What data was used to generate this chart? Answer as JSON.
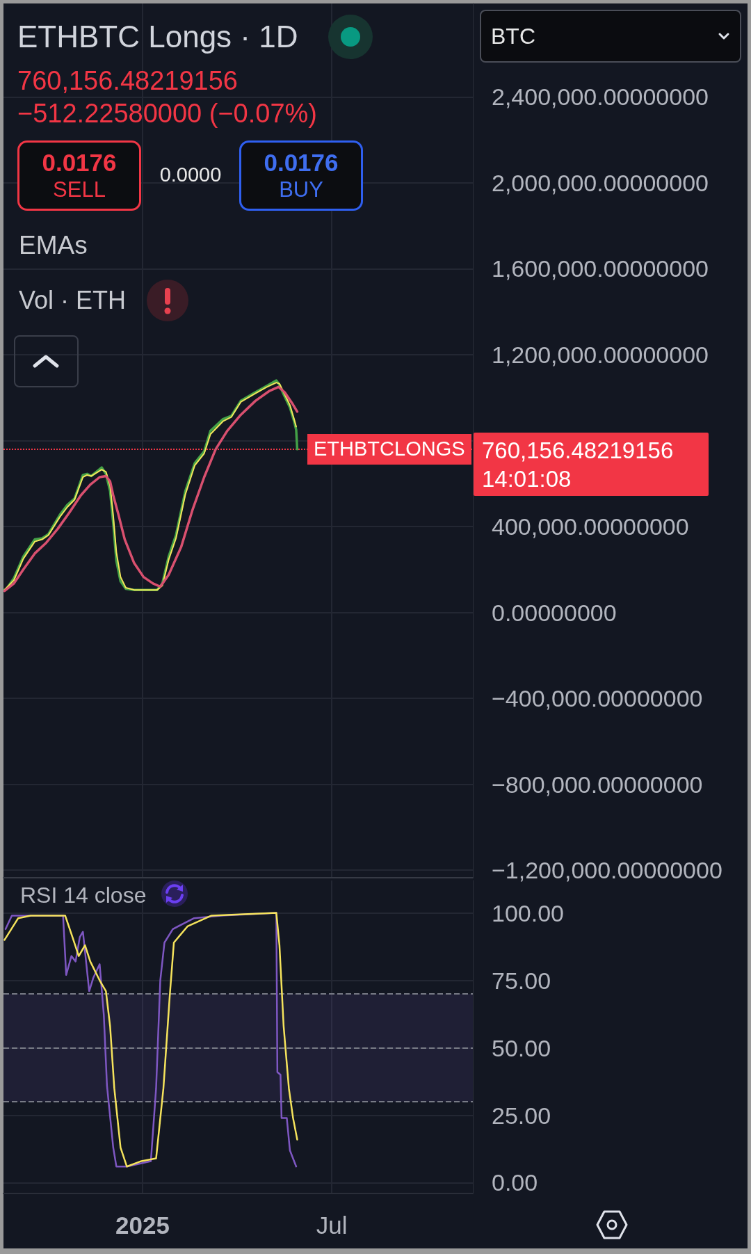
{
  "chart_data": [
    {
      "type": "line",
      "title": "ETHBTC Longs · 1D",
      "subtitle": "760,156.48219156",
      "annotations": [
        "−512.22580000 (−0.07%)",
        "0.0176",
        "SELL",
        "0.0000",
        "0.0176",
        "BUY",
        "EMAs",
        "Vol · ETH",
        "BTC",
        "760,156.48219156",
        "14:01:08"
      ],
      "series": [
        {
          "color": "#43a047",
          "x": [
            "2024-08-22",
            "2024-08-24",
            "2024-08-31",
            "2024-09-09",
            "2024-09-20",
            "2024-09-27",
            "2024-10-03",
            "2024-10-14",
            "2024-10-21",
            "2024-10-28",
            "2024-11-05",
            "2024-11-09",
            "2024-11-13",
            "2024-11-23",
            "2024-11-27",
            "2024-12-01",
            "2024-12-04",
            "2024-12-07",
            "2024-12-11",
            "2024-12-16",
            "2024-12-24",
            "2025-01-02",
            "2025-01-15",
            "2025-01-20",
            "2025-01-26",
            "2025-02-02",
            "2025-02-11",
            "2025-02-20",
            "2025-03-01",
            "2025-03-07",
            "2025-03-19",
            "2025-03-27",
            "2025-04-05",
            "2025-04-19",
            "2025-04-30",
            "2025-05-09",
            "2025-05-12",
            "2025-05-16",
            "2025-05-22",
            "2025-05-26",
            "2025-05-28",
            "2025-05-29"
          ],
          "values": [
            105000,
            110000,
            160000,
            260000,
            340000,
            345000,
            365000,
            455000,
            500000,
            530000,
            640000,
            645000,
            635000,
            675000,
            645000,
            565000,
            415000,
            240000,
            145000,
            110000,
            105000,
            105000,
            105000,
            135000,
            260000,
            360000,
            565000,
            695000,
            750000,
            845000,
            900000,
            915000,
            985000,
            1025000,
            1055000,
            1080000,
            1060000,
            1015000,
            955000,
            890000,
            850000,
            760000
          ]
        },
        {
          "color": "#f2e65a",
          "x": [
            "2024-08-22",
            "2024-08-31",
            "2024-09-09",
            "2024-09-20",
            "2024-09-27",
            "2024-10-03",
            "2024-10-14",
            "2024-10-21",
            "2024-10-28",
            "2024-11-05",
            "2024-11-09",
            "2024-11-13",
            "2024-11-23",
            "2024-11-27",
            "2024-12-01",
            "2024-12-04",
            "2024-12-07",
            "2024-12-11",
            "2024-12-16",
            "2024-12-24",
            "2025-01-15",
            "2025-01-20",
            "2025-01-26",
            "2025-02-02",
            "2025-02-11",
            "2025-02-20",
            "2025-03-01",
            "2025-03-07",
            "2025-03-19",
            "2025-03-27",
            "2025-04-05",
            "2025-04-19",
            "2025-04-30",
            "2025-05-09",
            "2025-05-12",
            "2025-05-16",
            "2025-05-22",
            "2025-05-26",
            "2025-05-28"
          ],
          "values": [
            105000,
            150000,
            250000,
            330000,
            340000,
            360000,
            445000,
            490000,
            525000,
            630000,
            640000,
            635000,
            665000,
            655000,
            590000,
            450000,
            280000,
            165000,
            115000,
            105000,
            105000,
            125000,
            245000,
            345000,
            550000,
            685000,
            740000,
            830000,
            890000,
            910000,
            980000,
            1020000,
            1050000,
            1070000,
            1065000,
            1025000,
            965000,
            900000,
            865000
          ]
        },
        {
          "color": "#d9506f",
          "x": [
            "2024-08-22",
            "2024-08-31",
            "2024-09-09",
            "2024-09-20",
            "2024-10-01",
            "2024-10-12",
            "2024-10-23",
            "2024-11-03",
            "2024-11-12",
            "2024-11-21",
            "2024-11-27",
            "2024-12-01",
            "2024-12-04",
            "2024-12-09",
            "2024-12-15",
            "2024-12-24",
            "2025-01-02",
            "2025-01-11",
            "2025-01-18",
            "2025-01-26",
            "2025-02-07",
            "2025-02-18",
            "2025-03-01",
            "2025-03-12",
            "2025-03-23",
            "2025-04-05",
            "2025-04-19",
            "2025-05-02",
            "2025-05-11",
            "2025-05-17",
            "2025-05-24",
            "2025-05-29"
          ],
          "values": [
            100000,
            135000,
            200000,
            275000,
            325000,
            390000,
            465000,
            545000,
            595000,
            630000,
            635000,
            610000,
            545000,
            455000,
            340000,
            230000,
            165000,
            135000,
            120000,
            175000,
            305000,
            480000,
            630000,
            760000,
            845000,
            920000,
            985000,
            1030000,
            1050000,
            1025000,
            975000,
            935000
          ]
        }
      ],
      "xlim": [
        "2024-08-21",
        "2025-11-13"
      ],
      "xticks": [
        {
          "value": "2025-01-01",
          "label": null
        },
        {
          "value": "2025-07-01",
          "label": null
        }
      ],
      "ylim": [
        -1235000,
        2835000
      ],
      "yticks": [
        {
          "value": 2400000,
          "label": "2,400,000.00000000"
        },
        {
          "value": 2000000,
          "label": "2,000,000.00000000"
        },
        {
          "value": 1600000,
          "label": "1,600,000.00000000"
        },
        {
          "value": 1200000,
          "label": "1,200,000.00000000"
        },
        {
          "value": 800000,
          "label": null
        },
        {
          "value": 400000,
          "label": "400,000.00000000"
        },
        {
          "value": 0,
          "label": "0.00000000"
        },
        {
          "value": -400000,
          "label": "−400,000.00000000"
        },
        {
          "value": -800000,
          "label": "−800,000.00000000"
        },
        {
          "value": -1200000,
          "label": "−1,200,000.00000000"
        }
      ],
      "grid": true,
      "tick_labels": "y",
      "ref_lines": [
        {
          "axis": "y",
          "value": 760156.48219156,
          "label": "ETHBTCLONGS",
          "color": "#f23645",
          "line_style": "dotted"
        }
      ]
    },
    {
      "type": "line",
      "title": "RSI 14 close",
      "series": [
        {
          "color": "#7e57c2",
          "x": [
            "2024-08-23",
            "2024-08-29",
            "2024-10-17",
            "2024-10-20",
            "2024-10-25",
            "2024-10-29",
            "2024-11-02",
            "2024-11-05",
            "2024-11-08",
            "2024-11-11",
            "2024-11-15",
            "2024-11-21",
            "2024-11-25",
            "2024-11-28",
            "2024-12-04",
            "2024-12-07",
            "2024-12-17",
            "2025-01-09",
            "2025-01-14",
            "2025-01-18",
            "2025-01-22",
            "2025-01-30",
            "2025-02-19",
            "2025-03-17",
            "2025-05-09",
            "2025-05-10",
            "2025-05-13",
            "2025-05-14",
            "2025-05-19",
            "2025-05-22",
            "2025-05-28"
          ],
          "values": [
            94,
            99,
            99,
            77,
            84,
            82,
            91,
            93,
            82,
            71,
            76,
            81,
            62,
            36,
            13,
            6,
            6,
            8,
            35,
            75,
            89,
            94,
            98,
            99,
            100,
            41,
            40,
            24,
            24,
            12,
            6
          ]
        },
        {
          "color": "#f5e35c",
          "x": [
            "2024-08-22",
            "2024-09-04",
            "2024-09-16",
            "2024-10-19",
            "2024-10-26",
            "2024-11-01",
            "2024-11-07",
            "2024-11-12",
            "2024-11-21",
            "2024-11-27",
            "2024-12-01",
            "2024-12-05",
            "2024-12-11",
            "2024-12-17",
            "2024-12-31",
            "2025-01-14",
            "2025-01-21",
            "2025-01-27",
            "2025-01-31",
            "2025-02-13",
            "2025-03-08",
            "2025-05-09",
            "2025-05-12",
            "2025-05-16",
            "2025-05-21",
            "2025-05-25",
            "2025-05-29"
          ],
          "values": [
            90,
            98,
            99,
            99,
            91,
            84,
            88,
            82,
            75,
            71,
            58,
            35,
            13,
            6,
            8,
            9,
            35,
            69,
            89,
            95,
            99,
            100,
            88,
            58,
            35,
            24,
            16
          ]
        }
      ],
      "xlim": [
        "2024-08-21",
        "2025-11-13"
      ],
      "xticks": [
        {
          "value": "2025-01-01",
          "label": "2025"
        },
        {
          "value": "2025-07-01",
          "label": "Jul"
        }
      ],
      "ylim": [
        -4,
        112
      ],
      "yticks": [
        {
          "value": 100,
          "label": "100.00"
        },
        {
          "value": 75,
          "label": "75.00"
        },
        {
          "value": 50,
          "label": "50.00"
        },
        {
          "value": 25,
          "label": "25.00"
        },
        {
          "value": 0,
          "label": "0.00"
        }
      ],
      "grid": true,
      "ref_lines": [
        {
          "axis": "y",
          "value": 70,
          "color": "#787b86",
          "line_style": "dashed"
        },
        {
          "axis": "y",
          "value": 50,
          "color": "#787b86",
          "line_style": "dashed"
        },
        {
          "axis": "y",
          "value": 30,
          "color": "#787b86",
          "line_style": "dashed"
        }
      ],
      "bands": [
        {
          "axis": "y",
          "from": 30,
          "to": 70,
          "color": "#7e57c2"
        }
      ]
    }
  ]
}
